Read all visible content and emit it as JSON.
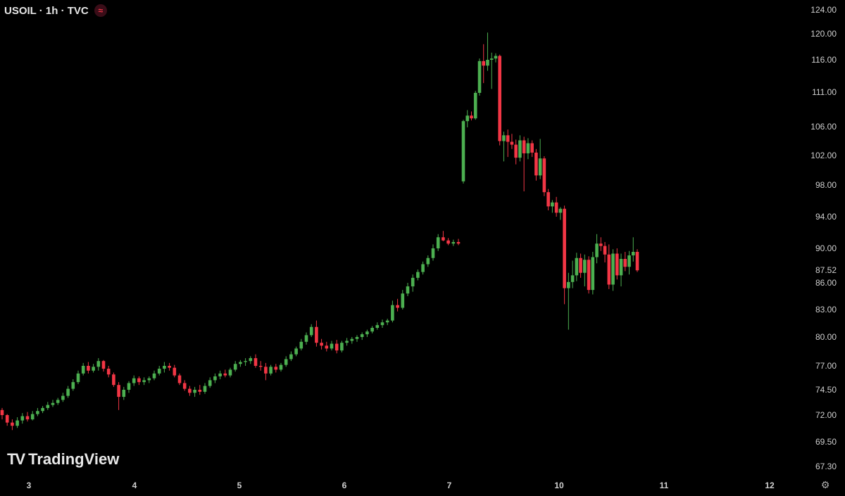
{
  "header": {
    "symbol": "USOIL · 1h · TVC",
    "status_icon": "wave-icon"
  },
  "branding": {
    "text": "TradingView"
  },
  "colors": {
    "up": "#26a69a",
    "up_body": "#4caf50",
    "down": "#f23645",
    "background": "#000000",
    "text": "#d9d9d9"
  },
  "chart_data": {
    "type": "candlestick",
    "y_ticks": [
      "124.00",
      "120.00",
      "116.00",
      "111.00",
      "106.00",
      "102.00",
      "98.00",
      "94.00",
      "90.00",
      "87.52",
      "86.00",
      "83.00",
      "80.00",
      "77.00",
      "74.50",
      "72.00",
      "69.50",
      "67.30"
    ],
    "x_ticks": [
      "3",
      "4",
      "5",
      "6",
      "7",
      "10",
      "11",
      "12"
    ],
    "last_price": "87.52",
    "candles": [
      [
        72.5,
        72.7,
        71.6,
        72.0
      ],
      [
        72.0,
        72.1,
        71.0,
        71.3
      ],
      [
        71.3,
        71.6,
        70.6,
        71.0
      ],
      [
        71.0,
        71.8,
        70.8,
        71.5
      ],
      [
        71.5,
        72.2,
        71.2,
        71.9
      ],
      [
        71.9,
        72.3,
        71.4,
        71.6
      ],
      [
        71.6,
        72.4,
        71.5,
        72.1
      ],
      [
        72.1,
        72.7,
        71.9,
        72.4
      ],
      [
        72.4,
        72.9,
        72.2,
        72.7
      ],
      [
        72.7,
        73.3,
        72.5,
        73.0
      ],
      [
        73.0,
        73.5,
        72.8,
        73.2
      ],
      [
        73.2,
        73.7,
        73.0,
        73.5
      ],
      [
        73.5,
        74.2,
        73.3,
        73.9
      ],
      [
        73.9,
        74.9,
        73.7,
        74.6
      ],
      [
        74.6,
        75.6,
        74.4,
        75.3
      ],
      [
        75.3,
        76.5,
        75.1,
        76.2
      ],
      [
        76.2,
        77.3,
        76.0,
        77.0
      ],
      [
        77.0,
        77.4,
        76.2,
        76.5
      ],
      [
        76.5,
        77.2,
        76.3,
        76.9
      ],
      [
        76.9,
        77.8,
        76.5,
        77.5
      ],
      [
        77.5,
        77.6,
        76.4,
        76.7
      ],
      [
        76.7,
        77.0,
        75.8,
        76.1
      ],
      [
        76.1,
        76.3,
        74.8,
        75.0
      ],
      [
        75.0,
        75.3,
        72.5,
        73.8
      ],
      [
        73.8,
        74.8,
        73.5,
        74.5
      ],
      [
        74.5,
        75.4,
        74.2,
        75.2
      ],
      [
        75.2,
        76.0,
        74.9,
        75.7
      ],
      [
        75.7,
        75.9,
        75.0,
        75.3
      ],
      [
        75.3,
        75.8,
        75.0,
        75.5
      ],
      [
        75.5,
        75.9,
        75.2,
        75.7
      ],
      [
        75.7,
        76.5,
        75.5,
        76.2
      ],
      [
        76.2,
        77.0,
        76.0,
        76.7
      ],
      [
        76.7,
        77.4,
        76.3,
        77.0
      ],
      [
        77.0,
        77.3,
        76.5,
        76.8
      ],
      [
        76.8,
        77.1,
        75.8,
        76.0
      ],
      [
        76.0,
        76.2,
        75.0,
        75.2
      ],
      [
        75.2,
        75.5,
        74.4,
        74.6
      ],
      [
        74.6,
        74.9,
        73.9,
        74.2
      ],
      [
        74.2,
        74.8,
        73.8,
        74.5
      ],
      [
        74.5,
        75.0,
        74.0,
        74.3
      ],
      [
        74.3,
        75.2,
        74.1,
        74.9
      ],
      [
        74.9,
        75.8,
        74.7,
        75.5
      ],
      [
        75.5,
        76.2,
        75.2,
        75.9
      ],
      [
        75.9,
        76.5,
        75.6,
        76.2
      ],
      [
        76.2,
        76.6,
        75.8,
        76.0
      ],
      [
        76.0,
        76.8,
        75.8,
        76.6
      ],
      [
        76.6,
        77.5,
        76.4,
        77.2
      ],
      [
        77.2,
        77.6,
        76.9,
        77.4
      ],
      [
        77.4,
        77.8,
        77.0,
        77.5
      ],
      [
        77.5,
        78.0,
        77.2,
        77.8
      ],
      [
        77.8,
        78.2,
        76.8,
        77.0
      ],
      [
        77.0,
        77.5,
        76.5,
        76.9
      ],
      [
        76.9,
        77.3,
        75.5,
        76.2
      ],
      [
        76.2,
        77.1,
        76.0,
        76.9
      ],
      [
        76.9,
        77.2,
        76.3,
        76.6
      ],
      [
        76.6,
        77.3,
        76.4,
        77.1
      ],
      [
        77.1,
        78.0,
        76.9,
        77.7
      ],
      [
        77.7,
        78.5,
        77.5,
        78.2
      ],
      [
        78.2,
        79.0,
        78.0,
        78.8
      ],
      [
        78.8,
        79.8,
        78.6,
        79.5
      ],
      [
        79.5,
        80.5,
        79.2,
        80.2
      ],
      [
        80.2,
        81.4,
        80.0,
        81.1
      ],
      [
        81.1,
        81.8,
        79.0,
        79.4
      ],
      [
        79.4,
        79.8,
        78.7,
        79.1
      ],
      [
        79.1,
        79.5,
        78.5,
        78.8
      ],
      [
        78.8,
        79.6,
        78.6,
        79.3
      ],
      [
        79.3,
        79.7,
        78.3,
        78.6
      ],
      [
        78.6,
        79.6,
        78.4,
        79.4
      ],
      [
        79.4,
        79.9,
        79.1,
        79.6
      ],
      [
        79.6,
        80.0,
        79.3,
        79.8
      ],
      [
        79.8,
        80.2,
        79.5,
        80.0
      ],
      [
        80.0,
        80.5,
        79.7,
        80.3
      ],
      [
        80.3,
        80.8,
        80.0,
        80.6
      ],
      [
        80.6,
        81.2,
        80.4,
        81.0
      ],
      [
        81.0,
        81.6,
        80.8,
        81.3
      ],
      [
        81.3,
        81.9,
        81.0,
        81.6
      ],
      [
        81.6,
        82.0,
        81.3,
        81.8
      ],
      [
        81.8,
        84.0,
        81.6,
        83.5
      ],
      [
        83.5,
        84.2,
        82.8,
        83.2
      ],
      [
        83.2,
        85.2,
        83.0,
        84.8
      ],
      [
        84.8,
        86.0,
        84.5,
        85.6
      ],
      [
        85.6,
        87.0,
        85.0,
        86.6
      ],
      [
        86.6,
        87.6,
        86.3,
        87.3
      ],
      [
        87.3,
        88.5,
        87.0,
        88.2
      ],
      [
        88.2,
        89.2,
        87.9,
        88.9
      ],
      [
        88.9,
        90.5,
        88.6,
        90.0
      ],
      [
        90.0,
        91.8,
        89.7,
        91.4
      ],
      [
        91.4,
        92.2,
        90.9,
        91.0
      ],
      [
        91.0,
        91.3,
        90.4,
        90.6
      ],
      [
        90.6,
        91.1,
        90.3,
        90.8
      ],
      [
        90.8,
        91.2,
        90.4,
        90.6
      ],
      [
        98.5,
        107.0,
        98.2,
        106.8
      ],
      [
        106.8,
        108.4,
        105.9,
        107.6
      ],
      [
        107.6,
        108.2,
        106.9,
        107.2
      ],
      [
        107.2,
        111.2,
        107.0,
        110.9
      ],
      [
        110.9,
        116.2,
        110.5,
        115.8
      ],
      [
        115.8,
        118.4,
        112.4,
        115.1
      ],
      [
        115.1,
        120.2,
        114.3,
        116.0
      ],
      [
        116.0,
        117.1,
        111.5,
        116.2
      ],
      [
        116.2,
        117.0,
        115.6,
        116.6
      ],
      [
        116.6,
        116.8,
        103.4,
        104.0
      ],
      [
        104.0,
        105.3,
        101.2,
        104.8
      ],
      [
        104.8,
        105.6,
        101.8,
        103.9
      ],
      [
        103.9,
        105.0,
        102.9,
        103.5
      ],
      [
        103.5,
        104.2,
        100.8,
        101.7
      ],
      [
        101.7,
        104.8,
        101.2,
        104.1
      ],
      [
        104.1,
        104.6,
        97.2,
        102.3
      ],
      [
        102.3,
        104.4,
        101.5,
        103.7
      ],
      [
        103.7,
        104.1,
        101.8,
        102.4
      ],
      [
        102.4,
        102.9,
        98.6,
        99.3
      ],
      [
        99.3,
        104.3,
        98.8,
        101.6
      ],
      [
        101.6,
        101.9,
        96.6,
        97.1
      ],
      [
        97.1,
        97.5,
        94.8,
        95.3
      ],
      [
        95.3,
        96.1,
        94.5,
        95.8
      ],
      [
        95.8,
        96.5,
        94.0,
        94.5
      ],
      [
        94.5,
        95.2,
        93.6,
        95.0
      ],
      [
        95.0,
        95.4,
        83.6,
        85.4
      ],
      [
        85.4,
        87.2,
        80.8,
        86.1
      ],
      [
        86.1,
        88.6,
        85.4,
        86.9
      ],
      [
        86.9,
        89.5,
        86.2,
        88.9
      ],
      [
        88.9,
        89.4,
        86.6,
        87.2
      ],
      [
        87.2,
        89.3,
        85.6,
        88.7
      ],
      [
        88.7,
        89.1,
        84.8,
        85.2
      ],
      [
        85.2,
        89.6,
        84.7,
        89.0
      ],
      [
        89.0,
        91.8,
        88.3,
        90.6
      ],
      [
        90.6,
        91.4,
        89.7,
        90.3
      ],
      [
        90.3,
        90.8,
        88.4,
        89.3
      ],
      [
        89.3,
        90.5,
        85.3,
        85.8
      ],
      [
        85.8,
        89.9,
        85.1,
        89.4
      ],
      [
        89.4,
        90.0,
        86.4,
        86.9
      ],
      [
        86.9,
        89.4,
        85.6,
        88.8
      ],
      [
        88.8,
        89.6,
        87.4,
        87.9
      ],
      [
        87.9,
        89.7,
        87.0,
        89.2
      ],
      [
        89.2,
        91.4,
        88.5,
        89.6
      ],
      [
        89.6,
        89.9,
        87.3,
        87.5
      ]
    ]
  }
}
